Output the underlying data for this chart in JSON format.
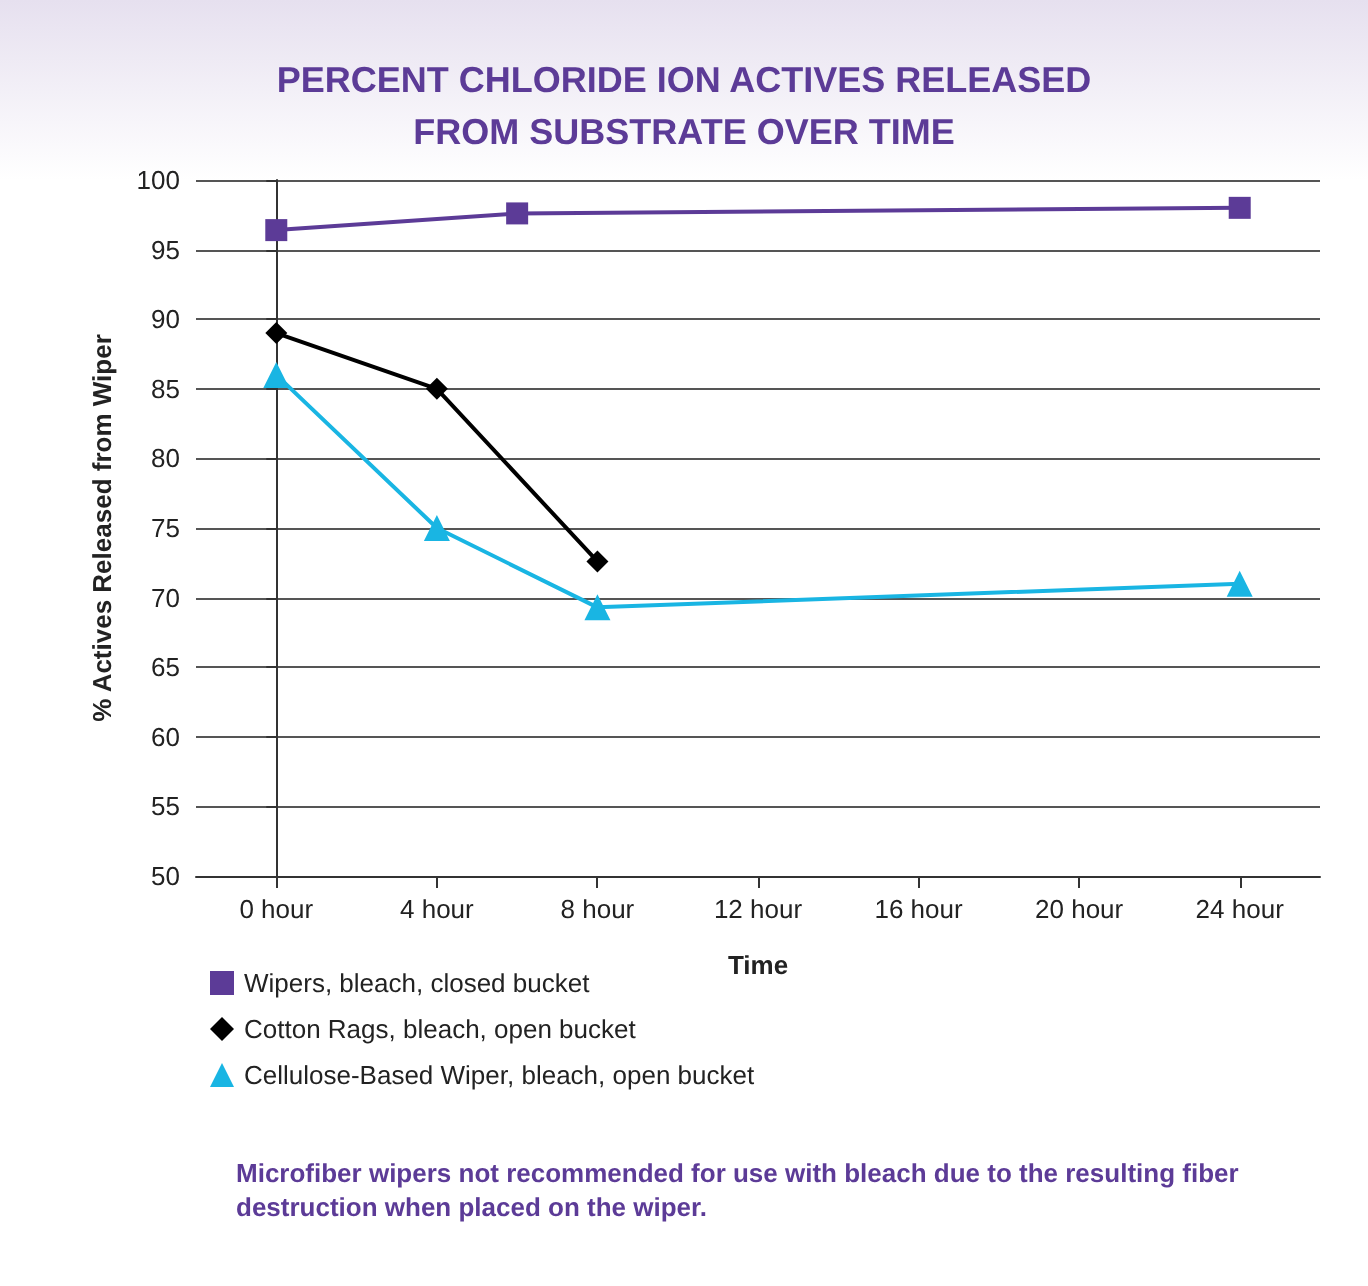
{
  "chart_data": {
    "type": "line",
    "title": "PERCENT CHLORIDE ION ACTIVES RELEASED\nFROM SUBSTRATE OVER TIME",
    "xlabel": "Time",
    "ylabel": "% Actives Released from Wiper",
    "series": [
      {
        "name": "Wipers, bleach, closed bucket",
        "color": "#5c3b97",
        "marker": "square",
        "x": [
          0,
          6,
          24
        ],
        "values": [
          96.4,
          97.6,
          98.0
        ]
      },
      {
        "name": "Cotton Rags, bleach, open bucket",
        "color": "#000000",
        "marker": "diamond",
        "x": [
          0,
          4,
          8
        ],
        "values": [
          89,
          85,
          72.6
        ]
      },
      {
        "name": "Cellulose-Based Wiper, bleach, open bucket",
        "color": "#19b5e3",
        "marker": "triangle",
        "x": [
          0,
          4,
          8,
          24
        ],
        "values": [
          86,
          75,
          69.3,
          71
        ]
      }
    ],
    "xlim": [
      -2,
      26
    ],
    "xticks": [
      {
        "value": 0,
        "label": "0 hour"
      },
      {
        "value": 4,
        "label": "4 hour"
      },
      {
        "value": 8,
        "label": "8 hour"
      },
      {
        "value": 12,
        "label": "12 hour"
      },
      {
        "value": 16,
        "label": "16 hour"
      },
      {
        "value": 20,
        "label": "20 hour"
      },
      {
        "value": 24,
        "label": "24 hour"
      }
    ],
    "ylim": [
      50,
      100
    ],
    "yticks": [
      50,
      55,
      60,
      65,
      70,
      75,
      80,
      85,
      90,
      95,
      100
    ],
    "grid": "y",
    "legend": "bottom",
    "line_style": "solid",
    "annotations": [
      "Microfiber wipers not recommended for use with bleach due to the resulting fiber destruction when placed on the wiper."
    ]
  }
}
